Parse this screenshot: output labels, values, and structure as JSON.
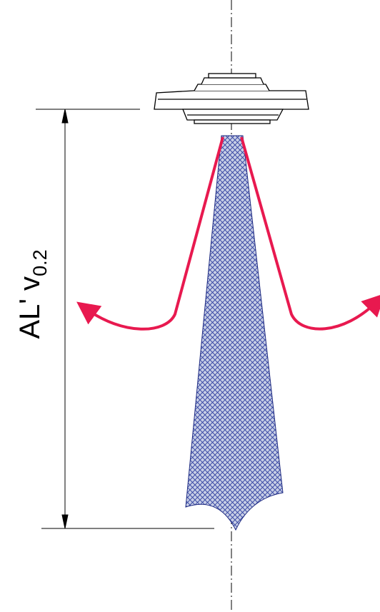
{
  "dimension": {
    "main": "AL' v",
    "subscript": "0.2"
  },
  "colors": {
    "line": "#000000",
    "jet_fill": "#c8cfe6",
    "jet_hatch": "#2f3fa0",
    "return_flow": "#e8194f"
  },
  "icons": {
    "diffuser": "ceiling-diffuser-icon",
    "flow_arrow": "return-flow-arrow-icon"
  }
}
